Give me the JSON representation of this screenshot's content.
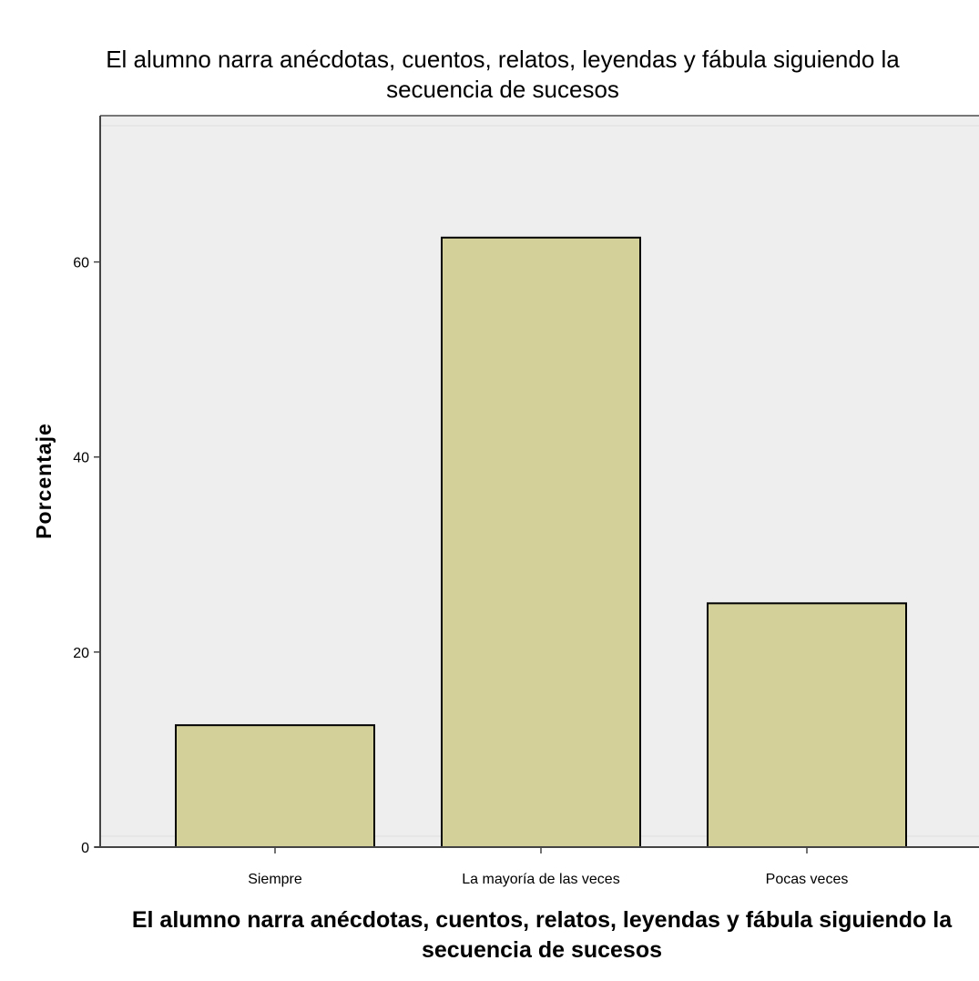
{
  "chart_data": {
    "type": "bar",
    "title": "El alumno narra anécdotas, cuentos, relatos, leyendas y fábula siguiendo la secuencia de sucesos",
    "title_lines": [
      "El alumno narra anécdotas, cuentos, relatos, leyendas y fábula siguiendo la",
      "secuencia de sucesos"
    ],
    "xlabel": "El alumno narra anécdotas, cuentos, relatos, leyendas y fábula siguiendo la secuencia de sucesos",
    "xlabel_lines": [
      "El alumno narra anécdotas, cuentos, relatos, leyendas y fábula siguiendo la",
      "secuencia de sucesos"
    ],
    "ylabel": "Porcentaje",
    "categories": [
      "Siempre",
      "La mayoría de las veces",
      "Pocas veces"
    ],
    "values": [
      12.5,
      62.5,
      25.0
    ],
    "ylim": [
      0,
      75
    ],
    "yticks": [
      0,
      20,
      40,
      60
    ],
    "grid": false,
    "colors": {
      "bar_fill": "#d3d09a",
      "bar_stroke": "#000000",
      "plot_background": "#eeeeee",
      "page_background": "#ffffff"
    }
  }
}
